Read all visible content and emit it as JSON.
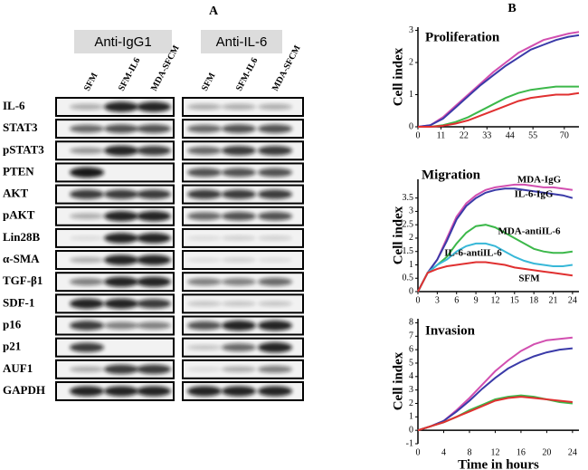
{
  "panel_a": {
    "label": "A",
    "groups": [
      {
        "name": "Anti-IgG1",
        "lanes": [
          "SFM",
          "SFM-IL6",
          "MDA-SFCM"
        ]
      },
      {
        "name": "Anti-IL-6",
        "lanes": [
          "SFM",
          "SFM-IL6",
          "MDA-SFCM"
        ]
      }
    ],
    "proteins": [
      "IL-6",
      "STAT3",
      "pSTAT3",
      "PTEN",
      "AKT",
      "pAKT",
      "Lin28B",
      "α-SMA",
      "TGF-β1",
      "SDF-1",
      "p16",
      "p21",
      "AUF1",
      "GAPDH"
    ]
  },
  "panel_b": {
    "label": "B"
  },
  "chart_data": [
    {
      "type": "line",
      "title": "Proliferation",
      "y_label": "Cell index",
      "x": [
        0,
        6,
        12,
        18,
        24,
        30,
        36,
        42,
        48,
        54,
        60,
        66,
        72,
        77
      ],
      "series": [
        {
          "color": "#d24fb0",
          "values": [
            0,
            0.05,
            0.3,
            0.65,
            1.0,
            1.35,
            1.7,
            2.0,
            2.3,
            2.5,
            2.7,
            2.8,
            2.9,
            2.95
          ]
        },
        {
          "color": "#3a3aa8",
          "values": [
            0,
            0.05,
            0.25,
            0.6,
            0.95,
            1.3,
            1.6,
            1.9,
            2.15,
            2.4,
            2.55,
            2.7,
            2.8,
            2.85
          ]
        },
        {
          "color": "#3cb84a",
          "values": [
            0,
            0,
            0.05,
            0.15,
            0.3,
            0.5,
            0.7,
            0.9,
            1.05,
            1.15,
            1.2,
            1.25,
            1.25,
            1.25
          ]
        },
        {
          "color": "#e03030",
          "values": [
            0,
            0,
            0.03,
            0.1,
            0.2,
            0.35,
            0.5,
            0.65,
            0.8,
            0.9,
            0.95,
            1.0,
            1.0,
            1.05
          ]
        }
      ],
      "xlim": [
        0,
        77
      ],
      "xticks": [
        0,
        11,
        22,
        33,
        44,
        55,
        70
      ],
      "ylim": [
        0,
        3.1
      ],
      "yticks": [
        0,
        1,
        2,
        3
      ]
    },
    {
      "type": "line",
      "title": "Migration",
      "y_label": "Cell index",
      "x": [
        0,
        1.5,
        3,
        4.5,
        6,
        7.5,
        9,
        10.5,
        12,
        13.5,
        15,
        16.5,
        18,
        19.5,
        21,
        22.5,
        24
      ],
      "series": [
        {
          "name": "MDA-IgG",
          "color": "#d24fb0",
          "values": [
            0,
            0.7,
            1.2,
            2.0,
            2.8,
            3.3,
            3.6,
            3.8,
            3.9,
            3.95,
            4.0,
            4.0,
            3.95,
            3.9,
            3.9,
            3.85,
            3.8
          ]
        },
        {
          "name": "IL-6-IgG",
          "color": "#3a3aa8",
          "values": [
            0,
            0.7,
            1.2,
            1.9,
            2.7,
            3.2,
            3.5,
            3.7,
            3.8,
            3.85,
            3.85,
            3.8,
            3.75,
            3.7,
            3.65,
            3.6,
            3.5
          ]
        },
        {
          "name": "MDA-antiIL-6",
          "color": "#3cb84a",
          "values": [
            0,
            0.7,
            1.0,
            1.3,
            1.8,
            2.2,
            2.45,
            2.5,
            2.4,
            2.2,
            2.0,
            1.8,
            1.6,
            1.5,
            1.45,
            1.45,
            1.5
          ]
        },
        {
          "name": "IL-6-antiIL-6",
          "color": "#38b8d8",
          "values": [
            0,
            0.7,
            1.0,
            1.2,
            1.5,
            1.7,
            1.8,
            1.8,
            1.7,
            1.5,
            1.3,
            1.15,
            1.05,
            1.0,
            0.95,
            0.95,
            1.0
          ]
        },
        {
          "name": "SFM",
          "color": "#e03030",
          "values": [
            0,
            0.7,
            0.85,
            0.95,
            1.0,
            1.05,
            1.1,
            1.1,
            1.05,
            1.0,
            0.9,
            0.85,
            0.8,
            0.75,
            0.7,
            0.65,
            0.6
          ]
        }
      ],
      "xlim": [
        0,
        25
      ],
      "xticks": [
        0,
        3,
        6,
        9,
        12,
        15,
        18,
        21,
        24
      ],
      "ylim": [
        0,
        4.2
      ],
      "yticks": [
        0,
        0.5,
        1,
        1.5,
        2,
        2.5,
        3,
        3.5
      ]
    },
    {
      "type": "line",
      "title": "Invasion",
      "y_label": "Cell index",
      "x_label": "Time in hours",
      "x": [
        0,
        2,
        4,
        6,
        8,
        10,
        12,
        14,
        16,
        18,
        20,
        22,
        24
      ],
      "series": [
        {
          "color": "#d24fb0",
          "values": [
            0,
            0.3,
            0.7,
            1.5,
            2.4,
            3.4,
            4.4,
            5.2,
            5.9,
            6.4,
            6.7,
            6.8,
            6.9
          ]
        },
        {
          "color": "#3a3aa8",
          "values": [
            0,
            0.3,
            0.7,
            1.4,
            2.2,
            3.1,
            3.9,
            4.6,
            5.1,
            5.5,
            5.8,
            6.0,
            6.1
          ]
        },
        {
          "color": "#3cb84a",
          "values": [
            0,
            0.3,
            0.6,
            1.0,
            1.5,
            1.9,
            2.3,
            2.5,
            2.6,
            2.5,
            2.3,
            2.1,
            2.0
          ]
        },
        {
          "color": "#e03030",
          "values": [
            0,
            0.3,
            0.6,
            1.0,
            1.4,
            1.8,
            2.2,
            2.4,
            2.5,
            2.4,
            2.3,
            2.2,
            2.1
          ]
        }
      ],
      "xlim": [
        0,
        25
      ],
      "xticks": [
        0,
        4,
        8,
        12,
        16,
        20,
        24
      ],
      "ylim": [
        -1,
        8.3
      ],
      "yticks": [
        -1,
        0,
        1,
        2,
        3,
        4,
        5,
        6,
        7,
        8
      ]
    }
  ]
}
